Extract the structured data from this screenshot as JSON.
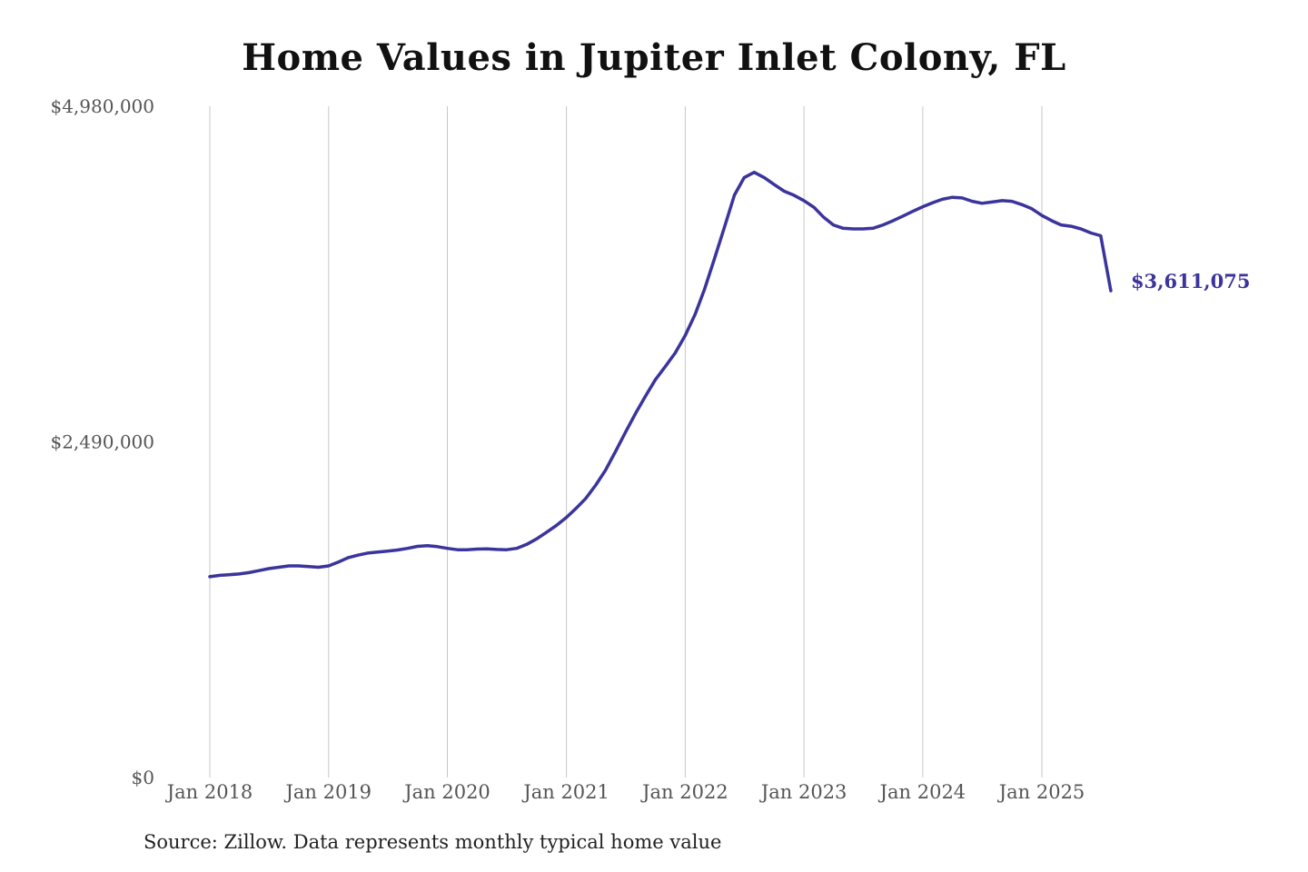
{
  "chart_data": {
    "type": "line",
    "title": "Home Values in Jupiter Inlet Colony, FL",
    "source": "Source: Zillow. Data represents monthly typical home value",
    "line_color": "#3b349c",
    "grid_color": "#c8c8c8",
    "ylim": [
      0,
      4980000
    ],
    "y_ticks": [
      {
        "value": 0,
        "label": "$0"
      },
      {
        "value": 2490000,
        "label": "$2,490,000"
      },
      {
        "value": 4980000,
        "label": "$4,980,000"
      }
    ],
    "x_ticks": [
      {
        "date": "2018-01",
        "label": "Jan 2018"
      },
      {
        "date": "2019-01",
        "label": "Jan 2019"
      },
      {
        "date": "2020-01",
        "label": "Jan 2020"
      },
      {
        "date": "2021-01",
        "label": "Jan 2021"
      },
      {
        "date": "2022-01",
        "label": "Jan 2022"
      },
      {
        "date": "2023-01",
        "label": "Jan 2023"
      },
      {
        "date": "2024-01",
        "label": "Jan 2024"
      },
      {
        "date": "2025-01",
        "label": "Jan 2025"
      }
    ],
    "vertical_grid": true,
    "end_label": "$3,611,075",
    "series": [
      {
        "x": [
          "2018-01",
          "2018-02",
          "2018-03",
          "2018-04",
          "2018-05",
          "2018-06",
          "2018-07",
          "2018-08",
          "2018-09",
          "2018-10",
          "2018-11",
          "2018-12",
          "2019-01",
          "2019-02",
          "2019-03",
          "2019-04",
          "2019-05",
          "2019-06",
          "2019-07",
          "2019-08",
          "2019-09",
          "2019-10",
          "2019-11",
          "2019-12",
          "2020-01",
          "2020-02",
          "2020-03",
          "2020-04",
          "2020-05",
          "2020-06",
          "2020-07",
          "2020-08",
          "2020-09",
          "2020-10",
          "2020-11",
          "2020-12",
          "2021-01",
          "2021-02",
          "2021-03",
          "2021-04",
          "2021-05",
          "2021-06",
          "2021-07",
          "2021-08",
          "2021-09",
          "2021-10",
          "2021-11",
          "2021-12",
          "2022-01",
          "2022-02",
          "2022-03",
          "2022-04",
          "2022-05",
          "2022-06",
          "2022-07",
          "2022-08",
          "2022-09",
          "2022-10",
          "2022-11",
          "2022-12",
          "2023-01",
          "2023-02",
          "2023-03",
          "2023-04",
          "2023-05",
          "2023-06",
          "2023-07",
          "2023-08",
          "2023-09",
          "2023-10",
          "2023-11",
          "2023-12",
          "2024-01",
          "2024-02",
          "2024-03",
          "2024-04",
          "2024-05",
          "2024-06",
          "2024-07",
          "2024-08",
          "2024-09",
          "2024-10",
          "2024-11",
          "2024-12",
          "2025-01",
          "2025-02",
          "2025-03",
          "2025-04",
          "2025-05",
          "2025-06",
          "2025-07",
          "2025-08"
        ],
        "values": [
          1490000,
          1500000,
          1505000,
          1510000,
          1520000,
          1535000,
          1550000,
          1560000,
          1570000,
          1570000,
          1565000,
          1560000,
          1570000,
          1600000,
          1630000,
          1650000,
          1665000,
          1673000,
          1680000,
          1688000,
          1700000,
          1715000,
          1720000,
          1713000,
          1700000,
          1690000,
          1690000,
          1695000,
          1697000,
          1692000,
          1690000,
          1700000,
          1730000,
          1770000,
          1820000,
          1870000,
          1930000,
          2000000,
          2070000,
          2170000,
          2280000,
          2420000,
          2560000,
          2700000,
          2830000,
          2950000,
          3050000,
          3150000,
          3280000,
          3440000,
          3620000,
          3850000,
          4080000,
          4320000,
          4450000,
          4490000,
          4450000,
          4400000,
          4350000,
          4320000,
          4280000,
          4230000,
          4160000,
          4100000,
          4075000,
          4070000,
          4070000,
          4075000,
          4100000,
          4130000,
          4165000,
          4200000,
          4235000,
          4265000,
          4290000,
          4305000,
          4300000,
          4275000,
          4260000,
          4270000,
          4280000,
          4275000,
          4250000,
          4220000,
          4170000,
          4130000,
          4100000,
          4090000,
          4070000,
          4040000,
          4020000,
          3611075
        ]
      }
    ]
  }
}
